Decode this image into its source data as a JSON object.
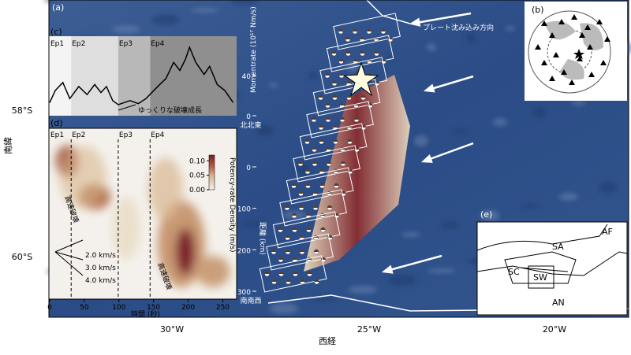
{
  "map": {
    "panel_label": "(a)",
    "annotation": "プレート沈み込み方向",
    "x_axis_label": "西経",
    "y_axis_label": "南緯",
    "lat_ticks": [
      "58°S",
      "60°S"
    ],
    "lon_ticks": [
      "30°W",
      "25°W",
      "20°W"
    ],
    "distance_axis": {
      "label": "距離 (km)",
      "ticks": [
        0,
        100,
        200,
        300
      ],
      "lim": [
        -93,
        319
      ],
      "north_end": "北北東",
      "south_end": "南南西"
    }
  },
  "panel_b": {
    "label": "(b)"
  },
  "panel_c": {
    "label": "(c)",
    "y_axis_label": "Momentrate (10¹⁷ Nm/s)",
    "epochs": [
      "Ep1",
      "Ep2",
      "Ep3",
      "Ep4"
    ],
    "annotation": "ゆっくりな破壊成長",
    "chart_data": {
      "type": "line",
      "epoch_starts": [
        0,
        31,
        99,
        145
      ],
      "x": [
        0,
        8,
        19,
        29,
        42,
        54,
        65,
        74,
        82,
        91,
        99,
        116,
        128,
        139,
        156,
        168,
        179,
        188,
        196,
        202,
        211,
        223,
        231,
        242,
        253,
        265
      ],
      "values": [
        13,
        25,
        33,
        17,
        29,
        21,
        31,
        23,
        29,
        15,
        11,
        15,
        12,
        17,
        29,
        37,
        53,
        45,
        56,
        68,
        53,
        41,
        49,
        31,
        25,
        13
      ],
      "xlim": [
        0,
        270
      ],
      "ylim": [
        0,
        79
      ],
      "yticks": [
        0,
        40
      ]
    }
  },
  "panel_d": {
    "label": "(d)",
    "epochs": [
      "Ep1",
      "Ep2",
      "Ep3",
      "Ep4"
    ],
    "x_axis_label": "時間 (秒)",
    "xticks": [
      0,
      50,
      100,
      150,
      200,
      250
    ],
    "colorbar": {
      "label": "Potency-rate Density (m/s)",
      "ticks": [
        {
          "value": 0.1,
          "label": "0.10"
        },
        0.05,
        {
          "value": 0,
          "label": "0.00"
        }
      ],
      "lim": [
        0,
        0.12
      ]
    },
    "annotations": [
      "高速破壊",
      "高速破壊"
    ],
    "speed_labels": [
      "2.0 km/s",
      "3.0 km/s",
      "4.0 km/s"
    ]
  },
  "panel_e": {
    "label": "(e)",
    "plates": [
      "SA",
      "AF",
      "SC",
      "SW",
      "AN"
    ]
  }
}
